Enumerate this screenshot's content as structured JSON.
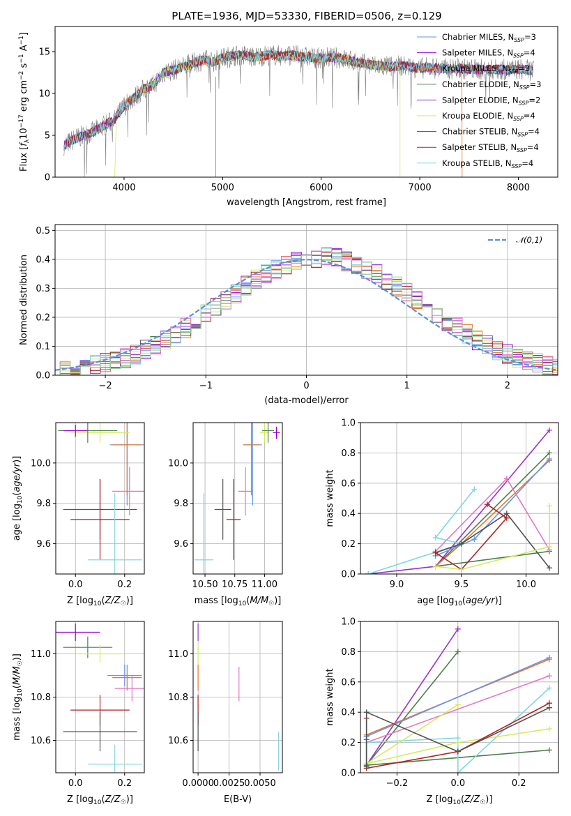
{
  "title": "PLATE=1936, MJD=53330, FIBERID=0506, z=0.129",
  "colors": {
    "chabrier_miles": "#6495ed",
    "salpeter_miles": "#9400d3",
    "kroupa_miles": "#e8742a",
    "chabrier_elodie": "#4a7f4a",
    "salpeter_elodie": "#9932cc",
    "kroupa_elodie": "#d4ea5e",
    "chabrier_stelib": "#505050",
    "salpeter_stelib": "#b22222",
    "kroupa_stelib": "#7fd8de",
    "pink": "#e377c2",
    "lightgreen": "#9ed9a0",
    "gray": "#808080",
    "gaussian": "#5b8fd6"
  },
  "chart_data": [
    {
      "id": "spectrum",
      "type": "line",
      "xlabel": "wavelength [Angstrom, rest frame]",
      "ylabel": "Flux [f_λ10^-17 erg cm^-2 s^-1 A^-1]",
      "xlim": [
        3300,
        8400
      ],
      "ylim": [
        0,
        18
      ],
      "xticks": [
        4000,
        5000,
        6000,
        7000,
        8000
      ],
      "yticks": [
        0,
        5,
        10,
        15
      ],
      "legend_placement": "right",
      "legend": [
        {
          "label": "Chabrier MILES, N",
          "sub": "SSP",
          "val": "=3"
        },
        {
          "label": "Salpeter MILES, N",
          "sub": "SSP",
          "val": "=4"
        },
        {
          "label": "Kroupa MILES, N",
          "sub": "SSP",
          "val": "=3"
        },
        {
          "label": "Chabrier ELODIE, N",
          "sub": "SSP",
          "val": "=3"
        },
        {
          "label": "Salpeter ELODIE, N",
          "sub": "SSP",
          "val": "=2"
        },
        {
          "label": "Kroupa ELODIE, N",
          "sub": "SSP",
          "val": "=4"
        },
        {
          "label": "Chabrier STELIB, N",
          "sub": "SSP",
          "val": "=4"
        },
        {
          "label": "Salpeter STELIB, N",
          "sub": "SSP",
          "val": "=4"
        },
        {
          "label": "Kroupa STELIB, N",
          "sub": "SSP",
          "val": "=4"
        }
      ],
      "envelope": [
        [
          3400,
          3.8
        ],
        [
          3500,
          4.6
        ],
        [
          3600,
          5.0
        ],
        [
          3700,
          5.5
        ],
        [
          3800,
          6.2
        ],
        [
          3900,
          6.8
        ],
        [
          4000,
          8.5
        ],
        [
          4100,
          9.5
        ],
        [
          4200,
          10.5
        ],
        [
          4300,
          11.0
        ],
        [
          4400,
          12.5
        ],
        [
          4500,
          12.8
        ],
        [
          4600,
          13.2
        ],
        [
          4700,
          13.6
        ],
        [
          4800,
          14.0
        ],
        [
          4900,
          13.8
        ],
        [
          5000,
          14.2
        ],
        [
          5100,
          14.5
        ],
        [
          5200,
          14.6
        ],
        [
          5300,
          14.3
        ],
        [
          5400,
          14.5
        ],
        [
          5500,
          14.6
        ],
        [
          5600,
          14.5
        ],
        [
          5700,
          14.6
        ],
        [
          5800,
          14.4
        ],
        [
          5900,
          14.3
        ],
        [
          6000,
          14.2
        ],
        [
          6100,
          14.3
        ],
        [
          6200,
          14.2
        ],
        [
          6300,
          13.9
        ],
        [
          6400,
          13.6
        ],
        [
          6500,
          13.4
        ],
        [
          6600,
          13.3
        ],
        [
          6700,
          13.2
        ],
        [
          6800,
          13.3
        ],
        [
          6900,
          13.2
        ],
        [
          7000,
          13.0
        ],
        [
          7100,
          13.1
        ],
        [
          7200,
          13.0
        ],
        [
          7300,
          12.9
        ],
        [
          7400,
          13.0
        ],
        [
          7500,
          12.9
        ],
        [
          7600,
          12.9
        ],
        [
          7700,
          12.8
        ],
        [
          7800,
          12.9
        ],
        [
          7900,
          12.8
        ],
        [
          8000,
          12.9
        ],
        [
          8100,
          12.8
        ]
      ]
    },
    {
      "id": "residuals",
      "type": "line",
      "xlabel": "(data-model)/error",
      "ylabel": "Normed distribution",
      "xlim": [
        -2.5,
        2.5
      ],
      "ylim": [
        0,
        0.52
      ],
      "xticks": [
        -2,
        -1,
        0,
        1,
        2
      ],
      "yticks": [
        0.0,
        0.1,
        0.2,
        0.3,
        0.4,
        0.5
      ],
      "legend": "𝒩(0,1)",
      "legend_placement": "upper right",
      "grid": true,
      "bin_width": 0.1
    },
    {
      "id": "age_vs_Z",
      "type": "scatter",
      "xlabel": "Z [log10(Z/Z☉)]",
      "ylabel": "age  [log10(age/yr)]",
      "xlim": [
        -0.08,
        0.28
      ],
      "ylim": [
        9.45,
        10.2
      ],
      "xticks": [
        0.0,
        0.2
      ],
      "yticks": [
        9.6,
        9.8,
        10.0
      ],
      "grid": true,
      "points": [
        {
          "key": "chabrier_stelib",
          "x": 0.1,
          "y": 9.77,
          "xe": 0.15,
          "ye": 0.15
        },
        {
          "key": "salpeter_stelib",
          "x": 0.1,
          "y": 9.72,
          "xe": 0.12,
          "ye": 0.2
        },
        {
          "key": "kroupa_stelib",
          "x": 0.16,
          "y": 9.52,
          "xe": 0.11,
          "ye": 0.33
        },
        {
          "key": "pink",
          "x": 0.22,
          "y": 9.86,
          "xe": 0.07,
          "ye": 0.12
        },
        {
          "key": "chabrier_miles",
          "x": 0.21,
          "y": 10.09,
          "xe": 0.07,
          "ye": 0.3
        },
        {
          "key": "kroupa_miles",
          "x": 0.21,
          "y": 10.09,
          "xe": 0.06,
          "ye": 0.25
        },
        {
          "key": "kroupa_elodie",
          "x": 0.1,
          "y": 10.15,
          "xe": 0.12,
          "ye": 0.05
        },
        {
          "key": "chabrier_elodie",
          "x": 0.05,
          "y": 10.16,
          "xe": 0.12,
          "ye": 0.06
        },
        {
          "key": "salpeter_miles",
          "x": 0.0,
          "y": 10.16,
          "xe": 0.05,
          "ye": 0.03
        }
      ]
    },
    {
      "id": "age_vs_mass",
      "type": "scatter",
      "xlabel": "mass [log10(M/M☉)]",
      "xlim": [
        10.4,
        11.15
      ],
      "ylim": [
        9.45,
        10.2
      ],
      "xticks": [
        10.5,
        10.75,
        11.0
      ],
      "yticks": [
        9.6,
        9.8,
        10.0
      ],
      "grid": true,
      "points": [
        {
          "key": "kroupa_stelib",
          "x": 10.49,
          "y": 9.52,
          "xe": 0.08,
          "ye": 0.33
        },
        {
          "key": "chabrier_stelib",
          "x": 10.65,
          "y": 9.77,
          "xe": 0.07,
          "ye": 0.15
        },
        {
          "key": "salpeter_stelib",
          "x": 10.74,
          "y": 9.72,
          "xe": 0.06,
          "ye": 0.2
        },
        {
          "key": "pink",
          "x": 10.84,
          "y": 9.86,
          "xe": 0.06,
          "ye": 0.12
        },
        {
          "key": "chabrier_miles",
          "x": 10.9,
          "y": 10.09,
          "xe": 0.08,
          "ye": 0.3
        },
        {
          "key": "kroupa_miles",
          "x": 10.89,
          "y": 10.09,
          "xe": 0.07,
          "ye": 0.25
        },
        {
          "key": "kroupa_elodie",
          "x": 11.0,
          "y": 10.15,
          "xe": 0.04,
          "ye": 0.05
        },
        {
          "key": "chabrier_elodie",
          "x": 11.03,
          "y": 10.16,
          "xe": 0.05,
          "ye": 0.06
        },
        {
          "key": "salpeter_miles",
          "x": 11.1,
          "y": 10.15,
          "xe": 0.03,
          "ye": 0.03
        }
      ]
    },
    {
      "id": "weight_vs_age",
      "type": "line",
      "xlabel": "age  [log10(age/yr)]",
      "ylabel": "mass weight",
      "xlim": [
        8.72,
        10.25
      ],
      "ylim": [
        0,
        1
      ],
      "xticks": [
        9.0,
        9.5,
        10.0
      ],
      "yticks": [
        0.0,
        0.2,
        0.4,
        0.6,
        0.8,
        1.0
      ],
      "grid": true,
      "series": [
        {
          "key": "salpeter_elodie",
          "points": [
            [
              10.18,
              0.95
            ],
            [
              9.3,
              0.05
            ],
            [
              8.78,
              0.0
            ]
          ]
        },
        {
          "key": "chabrier_elodie",
          "points": [
            [
              10.18,
              0.8
            ],
            [
              9.3,
              0.05
            ],
            [
              10.18,
              0.15
            ]
          ]
        },
        {
          "key": "kroupa_miles",
          "points": [
            [
              10.18,
              0.75
            ],
            [
              9.5,
              0.2
            ],
            [
              9.3,
              0.05
            ]
          ]
        },
        {
          "key": "chabrier_miles",
          "points": [
            [
              10.18,
              0.76
            ],
            [
              9.6,
              0.23
            ],
            [
              9.3,
              0.12
            ]
          ]
        },
        {
          "key": "pink",
          "points": [
            [
              10.18,
              0.16
            ],
            [
              9.85,
              0.63
            ],
            [
              9.3,
              0.15
            ]
          ]
        },
        {
          "key": "kroupa_stelib",
          "points": [
            [
              9.6,
              0.56
            ],
            [
              9.3,
              0.24
            ],
            [
              9.5,
              0.2
            ],
            [
              8.78,
              0.0
            ]
          ]
        },
        {
          "key": "chabrier_stelib",
          "points": [
            [
              10.18,
              0.04
            ],
            [
              9.85,
              0.4
            ],
            [
              9.5,
              0.2
            ],
            [
              9.3,
              0.14
            ]
          ]
        },
        {
          "key": "salpeter_stelib",
          "points": [
            [
              9.7,
              0.46
            ],
            [
              9.85,
              0.37
            ],
            [
              9.5,
              0.03
            ],
            [
              9.3,
              0.14
            ]
          ]
        },
        {
          "key": "kroupa_elodie",
          "points": [
            [
              10.18,
              0.45
            ],
            [
              10.18,
              0.18
            ],
            [
              9.5,
              0.03
            ],
            [
              9.3,
              0.05
            ]
          ]
        }
      ]
    },
    {
      "id": "mass_vs_Z",
      "type": "scatter",
      "xlabel": "Z [log10(Z/Z☉)]",
      "ylabel": "mass [log10(M/M☉)]",
      "xlim": [
        -0.08,
        0.28
      ],
      "ylim": [
        10.45,
        11.15
      ],
      "xticks": [
        0.0,
        0.2
      ],
      "yticks": [
        10.6,
        10.8,
        11.0
      ],
      "grid": true,
      "points": [
        {
          "key": "salpeter_miles",
          "x": 0.0,
          "y": 11.1,
          "xe": 0.1,
          "ye": 0.04
        },
        {
          "key": "chabrier_elodie",
          "x": 0.05,
          "y": 11.03,
          "xe": 0.1,
          "ye": 0.05
        },
        {
          "key": "kroupa_elodie",
          "x": 0.1,
          "y": 11.0,
          "xe": 0.1,
          "ye": 0.04
        },
        {
          "key": "chabrier_miles",
          "x": 0.2,
          "y": 10.9,
          "xe": 0.07,
          "ye": 0.05
        },
        {
          "key": "kroupa_miles",
          "x": 0.21,
          "y": 10.89,
          "xe": 0.06,
          "ye": 0.06
        },
        {
          "key": "pink",
          "x": 0.23,
          "y": 10.84,
          "xe": 0.07,
          "ye": 0.06
        },
        {
          "key": "salpeter_stelib",
          "x": 0.1,
          "y": 10.74,
          "xe": 0.12,
          "ye": 0.07
        },
        {
          "key": "chabrier_stelib",
          "x": 0.1,
          "y": 10.64,
          "xe": 0.15,
          "ye": 0.09
        },
        {
          "key": "kroupa_stelib",
          "x": 0.16,
          "y": 10.49,
          "xe": 0.11,
          "ye": 0.09
        }
      ]
    },
    {
      "id": "mass_vs_ebv",
      "type": "scatter",
      "xlabel": "E(B-V)",
      "xlim": [
        -0.0004,
        0.0068
      ],
      "ylim": [
        10.45,
        11.15
      ],
      "xticks": [
        0.0,
        0.0025,
        0.005
      ],
      "xticklabels": [
        "0.0000",
        "0.0025",
        "0.0050"
      ],
      "yticks": [
        10.6,
        10.8,
        11.0
      ],
      "grid": true,
      "points": [
        {
          "key": "salpeter_elodie",
          "x": 0.0,
          "y": 11.1,
          "xe": 0,
          "ye": 0.04
        },
        {
          "key": "kroupa_elodie",
          "x": 0.0,
          "y": 11.0,
          "xe": 0,
          "ye": 0.05
        },
        {
          "key": "kroupa_miles",
          "x": 0.0,
          "y": 10.89,
          "xe": 0,
          "ye": 0.06
        },
        {
          "key": "salpeter_stelib",
          "x": 0.0,
          "y": 10.74,
          "xe": 0,
          "ye": 0.07
        },
        {
          "key": "chabrier_stelib",
          "x": 0.0,
          "y": 10.64,
          "xe": 0,
          "ye": 0.09
        },
        {
          "key": "pink",
          "x": 0.0033,
          "y": 10.86,
          "xe": 0,
          "ye": 0.08
        },
        {
          "key": "kroupa_stelib",
          "x": 0.0065,
          "y": 10.55,
          "xe": 0,
          "ye": 0.09
        }
      ]
    },
    {
      "id": "weight_vs_Z",
      "type": "line",
      "xlabel": "Z [log10(Z/Z☉)]",
      "ylabel": "mass weight",
      "xlim": [
        -0.32,
        0.33
      ],
      "ylim": [
        0,
        1
      ],
      "xticks": [
        -0.2,
        0.0,
        0.2
      ],
      "yticks": [
        0.0,
        0.2,
        0.4,
        0.6,
        0.8,
        1.0
      ],
      "grid": true,
      "series": [
        {
          "key": "salpeter_elodie",
          "points": [
            [
              0.0,
              0.95
            ],
            [
              -0.3,
              0.05
            ],
            [
              -0.3,
              0.22
            ]
          ]
        },
        {
          "key": "chabrier_elodie",
          "points": [
            [
              0.0,
              0.8
            ],
            [
              -0.3,
              0.05
            ],
            [
              0.3,
              0.15
            ]
          ]
        },
        {
          "key": "kroupa_miles",
          "points": [
            [
              0.3,
              0.75
            ],
            [
              -0.3,
              0.25
            ]
          ]
        },
        {
          "key": "chabrier_miles",
          "points": [
            [
              0.3,
              0.76
            ],
            [
              -0.3,
              0.24
            ]
          ]
        },
        {
          "key": "pink",
          "points": [
            [
              0.3,
              0.64
            ],
            [
              -0.3,
              0.2
            ]
          ]
        },
        {
          "key": "kroupa_stelib",
          "points": [
            [
              0.3,
              0.56
            ],
            [
              0.0,
              0.0
            ],
            [
              0.0,
              0.23
            ],
            [
              -0.3,
              0.2
            ]
          ]
        },
        {
          "key": "kroupa_elodie",
          "points": [
            [
              0.0,
              0.45
            ],
            [
              -0.3,
              0.06
            ],
            [
              0.0,
              0.2
            ],
            [
              0.3,
              0.29
            ]
          ]
        },
        {
          "key": "salpeter_stelib",
          "points": [
            [
              0.3,
              0.46
            ],
            [
              0.0,
              0.14
            ],
            [
              -0.3,
              0.03
            ],
            [
              -0.3,
              0.36
            ]
          ]
        },
        {
          "key": "chabrier_stelib",
          "points": [
            [
              0.3,
              0.43
            ],
            [
              0.0,
              0.14
            ],
            [
              -0.3,
              0.4
            ],
            [
              -0.3,
              0.04
            ]
          ]
        }
      ]
    }
  ]
}
